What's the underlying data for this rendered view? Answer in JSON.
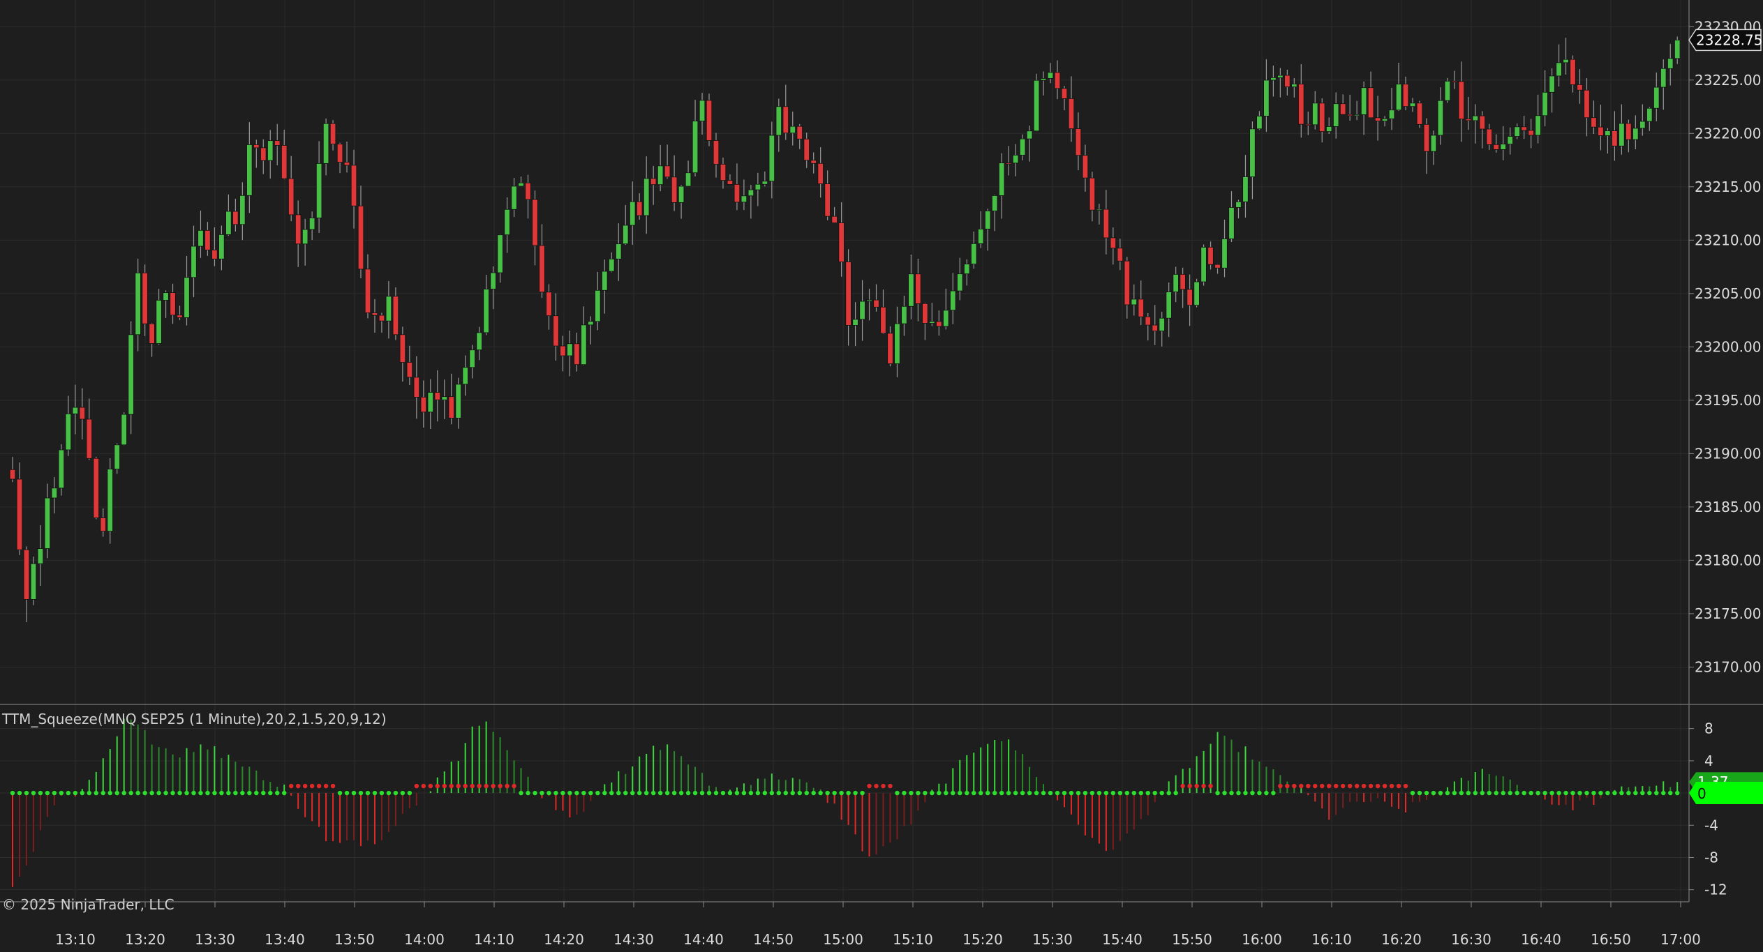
{
  "indicator": {
    "title": "TTM_Squeeze(MNQ SEP25 (1 Minute),20,2,1.5,20,9,12)"
  },
  "footer": {
    "copyright": "© 2025 NinjaTrader, LLC"
  },
  "colors": {
    "background": "#1e1e1e",
    "grid": "#2c2c2c",
    "up": "#48c048",
    "down": "#e03838",
    "axis_text": "#dcdcdc",
    "zero_tag": "#00ff00"
  },
  "chart_data": [
    {
      "type": "candlestick",
      "instrument": "MNQ SEP25 (1 Minute)",
      "x_ticks": [
        "13:10",
        "13:20",
        "13:30",
        "13:40",
        "13:50",
        "14:00",
        "14:10",
        "14:20",
        "14:30",
        "14:40",
        "14:50",
        "15:00",
        "15:10",
        "15:20",
        "15:30",
        "15:40",
        "15:50",
        "16:00",
        "16:10",
        "16:20",
        "16:30",
        "16:40",
        "16:50",
        "17:00"
      ],
      "y_ticks": [
        "23170.00",
        "23175.00",
        "23180.00",
        "23185.00",
        "23190.00",
        "23195.00",
        "23200.00",
        "23205.00",
        "23210.00",
        "23215.00",
        "23220.00",
        "23225.00",
        "23230.00"
      ],
      "ylim": [
        23166.5,
        23232.5
      ],
      "last_price": "23228.75",
      "close_path": [
        23187,
        23176,
        23180,
        23186,
        23191,
        23195,
        23190,
        23181,
        23190,
        23195,
        23206,
        23200,
        23205,
        23201,
        23206,
        23211,
        23208,
        23213,
        23212,
        23220,
        23217,
        23221,
        23212,
        23210,
        23213,
        23220,
        23219,
        23215,
        23205,
        23202,
        23204,
        23200,
        23196,
        23194,
        23196,
        23193,
        23197,
        23201,
        23205,
        23210,
        23215,
        23214,
        23207,
        23202,
        23200,
        23199,
        23203,
        23206,
        23209,
        23212,
        23213,
        23216,
        23216,
        23213,
        23216,
        23224,
        23218,
        23216,
        23212,
        23215,
        23215,
        23223,
        23220,
        23220,
        23217,
        23212,
        23210,
        23201,
        23205,
        23203,
        23199,
        23203,
        23207,
        23201,
        23203,
        23205,
        23208,
        23210,
        23213,
        23216,
        23218,
        23220,
        23225,
        23226,
        23224,
        23219,
        23214,
        23212,
        23209,
        23205,
        23203,
        23202,
        23203,
        23206,
        23204,
        23209,
        23207,
        23211,
        23214,
        23220,
        23224,
        23227,
        23225,
        23221,
        23222,
        23219,
        23223,
        23221,
        23225,
        23220,
        23222,
        23224,
        23222,
        23218,
        23223,
        23226,
        23221,
        23221,
        23220,
        23219,
        23221,
        23220,
        23222,
        23225,
        23226,
        23224,
        23220,
        23221,
        23220,
        23220,
        23221,
        23224,
        23225,
        23228.75
      ],
      "volatility": 2.4,
      "seed": 20250
    },
    {
      "type": "histogram",
      "title": "TTM_Squeeze(MNQ SEP25 (1 Minute),20,2,1.5,20,9,12)",
      "y_ticks": [
        "8",
        "4",
        "0",
        "-4",
        "-8",
        "-12"
      ],
      "ylim": [
        -13.5,
        11.0
      ],
      "tags": [
        "1.37",
        "0"
      ],
      "momentum_path": [
        -12,
        -8,
        -4,
        -1,
        0,
        2,
        5,
        9,
        8,
        6,
        5,
        5,
        6,
        5,
        4,
        3,
        2,
        1,
        -2,
        -4,
        -6,
        -6,
        -6,
        -6,
        -4,
        -2,
        0,
        2,
        4,
        8,
        9,
        6,
        3,
        0,
        -1,
        -3,
        -2,
        0,
        2,
        3,
        5,
        6,
        5,
        3,
        1,
        0,
        1,
        2,
        2,
        2,
        1,
        0,
        -2,
        -5,
        -8,
        -7,
        -5,
        -3,
        0,
        2,
        4,
        6,
        7,
        6,
        4,
        1,
        -1,
        -3,
        -6,
        -7,
        -6,
        -4,
        -1,
        1,
        3,
        5,
        7,
        6,
        5,
        3,
        2,
        1,
        -1,
        -3,
        -2,
        -1,
        -1,
        -2,
        -2,
        -1,
        0,
        1,
        2,
        3,
        2,
        1,
        0,
        -1,
        -2,
        -1,
        -1,
        0,
        1,
        1,
        1,
        1.37
      ],
      "squeeze_on_ranges": [
        [
          40,
          46
        ],
        [
          58,
          72
        ],
        [
          123,
          126
        ],
        [
          168,
          172
        ],
        [
          182,
          200
        ]
      ]
    }
  ]
}
